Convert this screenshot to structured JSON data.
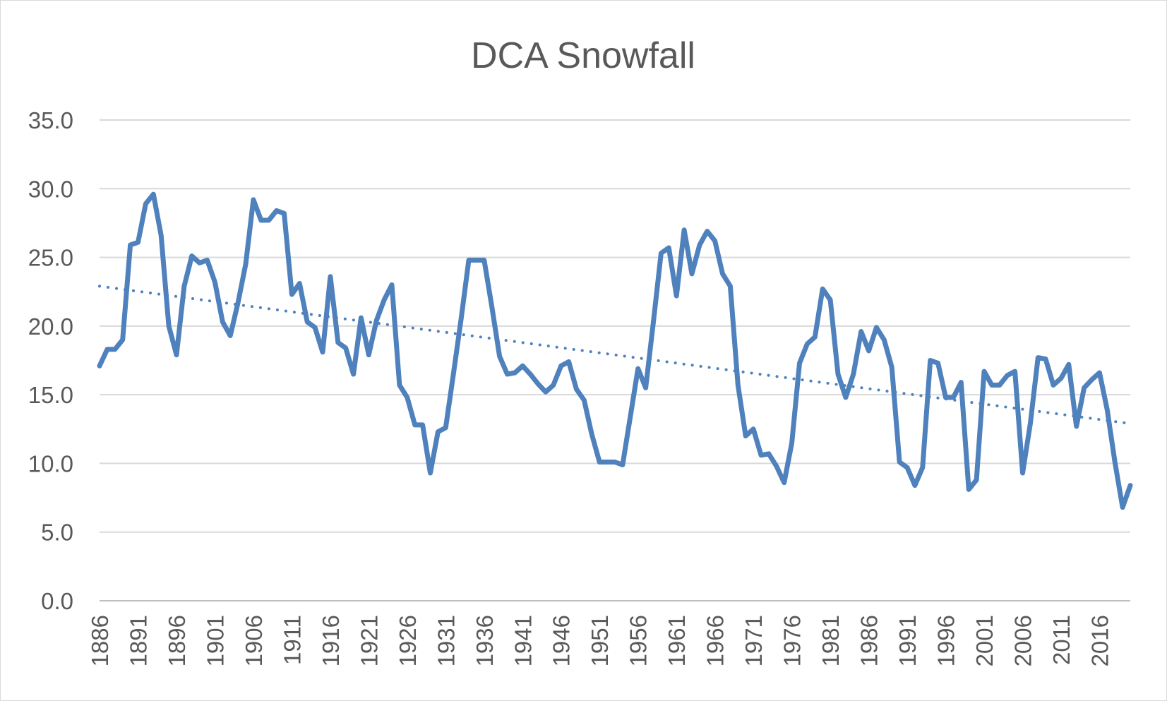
{
  "chart_data": {
    "type": "line",
    "title": "DCA Snowfall",
    "xlabel": "",
    "ylabel": "",
    "ylim": [
      0,
      35
    ],
    "yticks": [
      "0.0",
      "5.0",
      "10.0",
      "15.0",
      "20.0",
      "25.0",
      "30.0",
      "35.0"
    ],
    "xticks": [
      "1886",
      "1891",
      "1896",
      "1901",
      "1906",
      "1911",
      "1916",
      "1921",
      "1926",
      "1931",
      "1936",
      "1941",
      "1946",
      "1951",
      "1956",
      "1961",
      "1966",
      "1971",
      "1976",
      "1981",
      "1986",
      "1991",
      "1996",
      "2001",
      "2006",
      "2011",
      "2016"
    ],
    "x_range": [
      1886,
      2020
    ],
    "grid": true,
    "legend": "none",
    "series": [
      {
        "color": "#4F81BD",
        "style": "solid",
        "x": [
          1886,
          1887,
          1888,
          1889,
          1890,
          1891,
          1892,
          1893,
          1894,
          1895,
          1896,
          1897,
          1898,
          1899,
          1900,
          1901,
          1902,
          1903,
          1904,
          1905,
          1906,
          1907,
          1908,
          1909,
          1910,
          1911,
          1912,
          1913,
          1914,
          1915,
          1916,
          1917,
          1918,
          1919,
          1920,
          1921,
          1922,
          1923,
          1924,
          1925,
          1926,
          1927,
          1928,
          1929,
          1930,
          1931,
          1932,
          1933,
          1934,
          1935,
          1936,
          1937,
          1938,
          1939,
          1940,
          1941,
          1942,
          1943,
          1944,
          1945,
          1946,
          1947,
          1948,
          1949,
          1950,
          1951,
          1952,
          1953,
          1954,
          1955,
          1956,
          1957,
          1958,
          1959,
          1960,
          1961,
          1962,
          1963,
          1964,
          1965,
          1966,
          1967,
          1968,
          1969,
          1970,
          1971,
          1972,
          1973,
          1974,
          1975,
          1976,
          1977,
          1978,
          1979,
          1980,
          1981,
          1982,
          1983,
          1984,
          1985,
          1986,
          1987,
          1988,
          1989,
          1990,
          1991,
          1992,
          1993,
          1994,
          1995,
          1996,
          1997,
          1998,
          1999,
          2000,
          2001,
          2002,
          2003,
          2004,
          2005,
          2006,
          2007,
          2008,
          2009,
          2010,
          2011,
          2012,
          2013,
          2014,
          2015,
          2016,
          2017,
          2018,
          2019,
          2020
        ],
        "values": [
          17.1,
          18.3,
          18.3,
          19.0,
          25.9,
          26.1,
          28.9,
          29.6,
          26.6,
          20.0,
          17.9,
          22.9,
          25.1,
          24.6,
          24.8,
          23.2,
          20.3,
          19.3,
          21.7,
          24.5,
          29.2,
          27.7,
          27.7,
          28.4,
          28.2,
          22.3,
          23.1,
          20.3,
          19.9,
          18.1,
          23.6,
          18.8,
          18.4,
          16.5,
          20.6,
          17.9,
          20.4,
          21.9,
          23.0,
          15.7,
          14.8,
          12.8,
          12.8,
          9.3,
          12.3,
          12.6,
          16.5,
          20.5,
          24.8,
          24.8,
          24.8,
          21.4,
          17.8,
          16.5,
          16.6,
          17.1,
          16.5,
          15.8,
          15.2,
          15.7,
          17.1,
          17.4,
          15.4,
          14.6,
          12.1,
          10.1,
          10.1,
          10.1,
          9.9,
          13.4,
          16.9,
          15.5,
          20.3,
          25.3,
          25.7,
          22.2,
          27.0,
          23.8,
          25.9,
          26.9,
          26.2,
          23.8,
          22.9,
          15.7,
          12.0,
          12.5,
          10.6,
          10.7,
          9.8,
          8.6,
          11.5,
          17.3,
          18.7,
          19.2,
          22.7,
          21.9,
          16.5,
          14.8,
          16.5,
          19.6,
          18.2,
          19.9,
          19.0,
          17.0,
          10.1,
          9.7,
          8.4,
          9.7,
          17.5,
          17.3,
          14.8,
          14.8,
          15.9,
          8.1,
          8.8,
          16.7,
          15.7,
          15.7,
          16.4,
          16.7,
          9.3,
          12.9,
          17.7,
          17.6,
          15.7,
          16.2,
          17.2,
          12.7,
          15.5,
          16.1,
          16.6,
          13.9,
          10.1,
          6.8,
          8.4
        ]
      },
      {
        "color": "#4F81BD",
        "style": "dotted",
        "x": [
          1886,
          2020
        ],
        "values": [
          22.9,
          12.9
        ]
      }
    ]
  }
}
